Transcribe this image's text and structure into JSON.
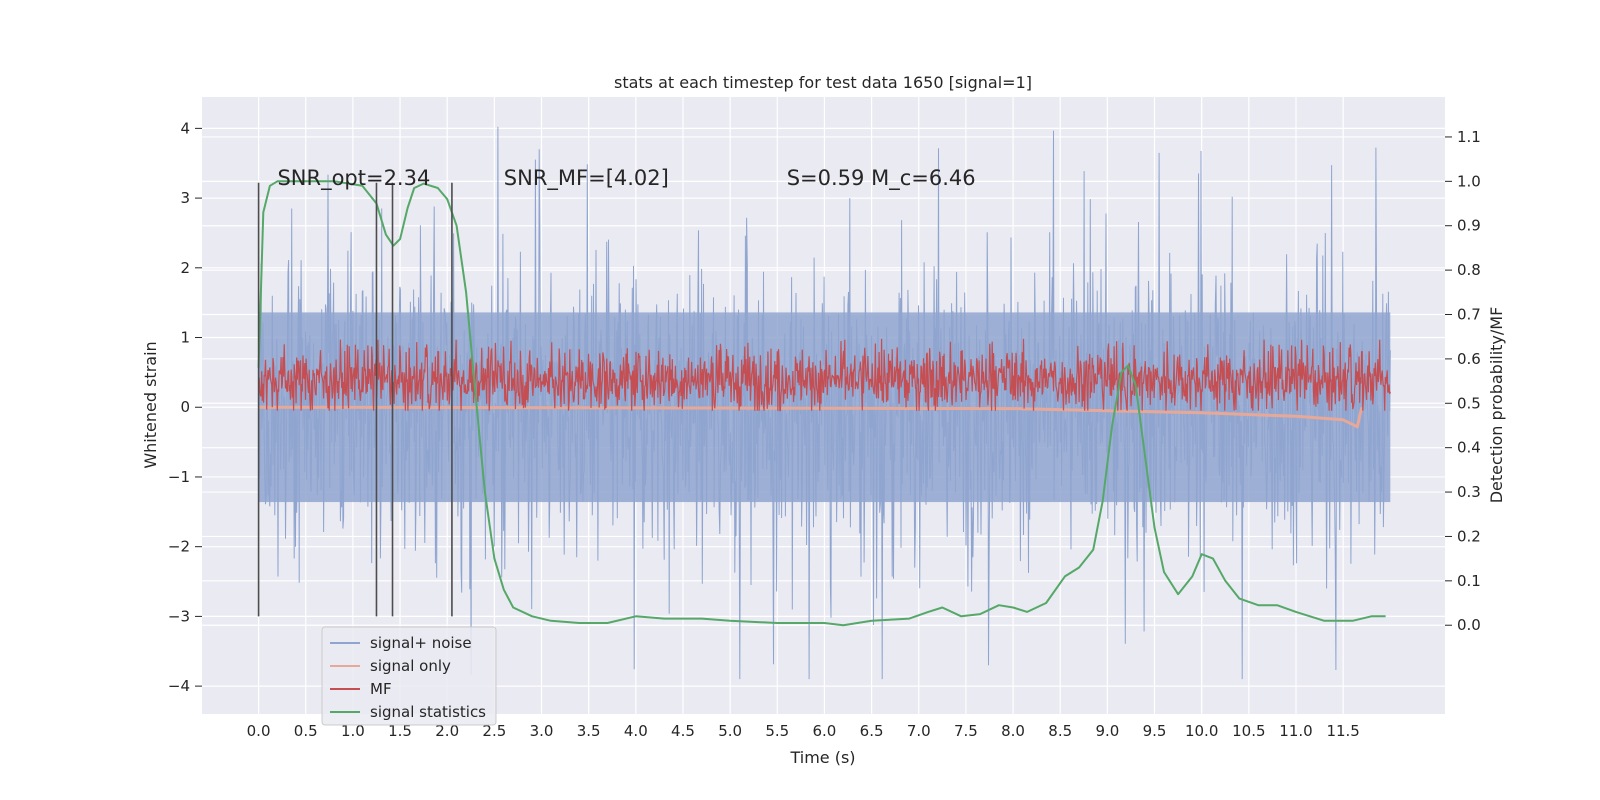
{
  "chart_data": {
    "type": "line",
    "title": "stats at each timestep for test data 1650 [signal=1]",
    "xlabel": "Time (s)",
    "ylabel_left": "Whitened strain",
    "ylabel_right": "Detection probability/MF",
    "xlim": [
      -0.6,
      12.58
    ],
    "ylim_left": [
      -4.4,
      4.45
    ],
    "ylim_right": [
      -0.2,
      1.19
    ],
    "x_ticks": [
      "0.0",
      "0.5",
      "1.0",
      "1.5",
      "2.0",
      "2.5",
      "3.0",
      "3.5",
      "4.0",
      "4.5",
      "5.0",
      "5.5",
      "6.0",
      "6.5",
      "7.0",
      "7.5",
      "8.0",
      "8.5",
      "9.0",
      "9.5",
      "10.0",
      "10.5",
      "11.0",
      "11.5"
    ],
    "y_ticks_left": [
      "4",
      "3",
      "2",
      "1",
      "0",
      "−1",
      "−2",
      "−3",
      "−4"
    ],
    "y_ticks_right": [
      "1.1",
      "1.0",
      "0.9",
      "0.8",
      "0.7",
      "0.6",
      "0.5",
      "0.4",
      "0.3",
      "0.2",
      "0.1",
      "0.0"
    ],
    "grid": true,
    "legend_position": "lower-left",
    "series": [
      {
        "name": "signal+ noise",
        "color": "#8fa5cf",
        "axis": "left",
        "summary": {
          "x_range": [
            0.0,
            12.0
          ],
          "band": [
            -1.6,
            1.6
          ],
          "peak_max": 4.1,
          "peak_min": -3.9
        }
      },
      {
        "name": "signal only",
        "color": "#e8a898",
        "axis": "left",
        "points": [
          [
            0.0,
            0.0
          ],
          [
            8.0,
            -0.02
          ],
          [
            9.0,
            -0.05
          ],
          [
            10.0,
            -0.08
          ],
          [
            11.0,
            -0.13
          ],
          [
            11.5,
            -0.18
          ],
          [
            11.65,
            -0.28
          ],
          [
            11.68,
            -0.1
          ],
          [
            11.7,
            0.0
          ]
        ]
      },
      {
        "name": "MF",
        "color": "#c44e52",
        "axis": "left",
        "summary": {
          "x_range": [
            0.0,
            12.0
          ],
          "band": [
            0.05,
            0.75
          ],
          "peak_max": 0.98,
          "peak_min": -0.05
        }
      },
      {
        "name": "signal statistics",
        "color": "#55a868",
        "axis": "right",
        "points": [
          [
            0.0,
            0.58
          ],
          [
            0.05,
            0.93
          ],
          [
            0.12,
            0.99
          ],
          [
            0.2,
            1.0
          ],
          [
            0.5,
            1.0
          ],
          [
            0.8,
            1.0
          ],
          [
            1.1,
            0.99
          ],
          [
            1.25,
            0.95
          ],
          [
            1.35,
            0.88
          ],
          [
            1.43,
            0.855
          ],
          [
            1.5,
            0.87
          ],
          [
            1.58,
            0.94
          ],
          [
            1.65,
            0.985
          ],
          [
            1.75,
            0.995
          ],
          [
            1.9,
            0.985
          ],
          [
            2.0,
            0.96
          ],
          [
            2.1,
            0.9
          ],
          [
            2.2,
            0.75
          ],
          [
            2.3,
            0.52
          ],
          [
            2.4,
            0.3
          ],
          [
            2.5,
            0.15
          ],
          [
            2.6,
            0.08
          ],
          [
            2.7,
            0.04
          ],
          [
            2.9,
            0.02
          ],
          [
            3.1,
            0.01
          ],
          [
            3.4,
            0.005
          ],
          [
            3.7,
            0.005
          ],
          [
            4.0,
            0.02
          ],
          [
            4.3,
            0.015
          ],
          [
            4.7,
            0.015
          ],
          [
            5.0,
            0.01
          ],
          [
            5.5,
            0.005
          ],
          [
            6.0,
            0.005
          ],
          [
            6.2,
            0.0
          ],
          [
            6.5,
            0.01
          ],
          [
            6.9,
            0.015
          ],
          [
            7.1,
            0.03
          ],
          [
            7.25,
            0.04
          ],
          [
            7.45,
            0.02
          ],
          [
            7.65,
            0.025
          ],
          [
            7.85,
            0.045
          ],
          [
            8.0,
            0.04
          ],
          [
            8.15,
            0.03
          ],
          [
            8.35,
            0.05
          ],
          [
            8.55,
            0.11
          ],
          [
            8.7,
            0.13
          ],
          [
            8.85,
            0.17
          ],
          [
            8.95,
            0.28
          ],
          [
            9.05,
            0.45
          ],
          [
            9.15,
            0.57
          ],
          [
            9.22,
            0.585
          ],
          [
            9.3,
            0.54
          ],
          [
            9.4,
            0.38
          ],
          [
            9.5,
            0.22
          ],
          [
            9.6,
            0.12
          ],
          [
            9.75,
            0.07
          ],
          [
            9.9,
            0.11
          ],
          [
            10.0,
            0.16
          ],
          [
            10.12,
            0.15
          ],
          [
            10.25,
            0.1
          ],
          [
            10.4,
            0.06
          ],
          [
            10.6,
            0.045
          ],
          [
            10.8,
            0.045
          ],
          [
            11.0,
            0.03
          ],
          [
            11.3,
            0.01
          ],
          [
            11.6,
            0.01
          ],
          [
            11.8,
            0.02
          ],
          [
            11.95,
            0.02
          ]
        ]
      }
    ],
    "vertical_lines": [
      {
        "x": 0.0,
        "y0": -3.0,
        "y1": 3.22
      },
      {
        "x": 1.25,
        "y0": -3.0,
        "y1": 3.22
      },
      {
        "x": 1.42,
        "y0": -3.0,
        "y1": 3.22
      },
      {
        "x": 2.05,
        "y0": -3.0,
        "y1": 3.22
      }
    ],
    "annotations": [
      {
        "text": "SNR_opt=2.34",
        "x": 0.2,
        "y": 3.22
      },
      {
        "text": "SNR_MF=[4.02]",
        "x": 2.6,
        "y": 3.22
      },
      {
        "text": "S=0.59   M_c=6.46",
        "x": 5.6,
        "y": 3.22
      }
    ]
  },
  "colors": {
    "axes_bg": "#eaeaf2",
    "grid": "#ffffff",
    "text": "#262626",
    "vline": "#4d4d4d"
  }
}
